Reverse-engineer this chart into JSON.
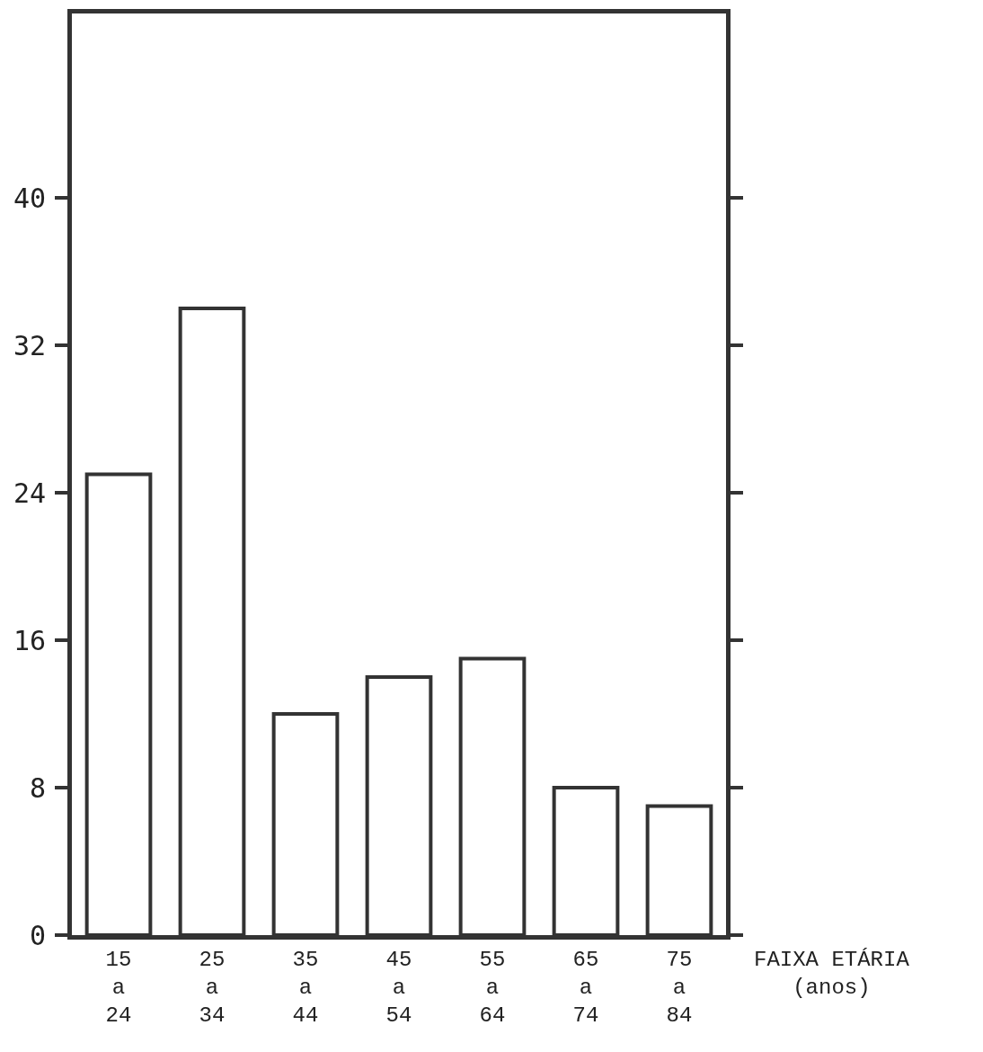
{
  "chart_data": {
    "type": "bar",
    "xlabel": "FAIXA ETÁRIA\n(anos)",
    "categories": [
      "15\na\n24",
      "25\na\n34",
      "35\na\n44",
      "45\na\n54",
      "55\na\n64",
      "65\na\n74",
      "75\na\n84"
    ],
    "values": [
      25,
      34,
      12,
      14,
      15,
      8,
      7
    ],
    "color": "#ffffff",
    "ylim": [
      0,
      50
    ],
    "yticks": [
      0,
      8,
      16,
      24,
      32,
      40
    ],
    "grid": false
  }
}
